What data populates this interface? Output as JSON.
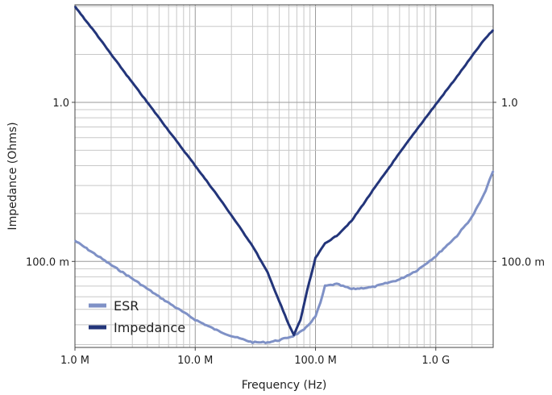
{
  "chart_data": {
    "type": "line",
    "title": "",
    "xlabel": "Frequency (Hz)",
    "ylabel": "Impedance (Ohms)",
    "x_scale": "log",
    "y_scale": "log",
    "xlim": [
      1000000,
      3000000000
    ],
    "ylim": [
      0.0288,
      4.1
    ],
    "grid": true,
    "legend_position": "bottom-left",
    "x_ticks": [
      {
        "value": 1000000,
        "label": "1.0 M"
      },
      {
        "value": 10000000,
        "label": "10.0 M"
      },
      {
        "value": 100000000,
        "label": "100.0 M"
      },
      {
        "value": 1000000000,
        "label": "1.0 G"
      }
    ],
    "y_ticks": [
      {
        "value": 0.1,
        "label": "100.0 m"
      },
      {
        "value": 1.0,
        "label": "1.0"
      }
    ],
    "series": [
      {
        "name": "ESR",
        "color": "#7f91c6",
        "x": [
          1000000,
          1500000,
          2000000,
          3000000,
          5000000,
          7000000,
          10000000,
          15000000,
          20000000,
          30000000,
          40000000,
          50000000,
          65000000,
          80000000,
          100000000,
          110000000,
          120000000,
          150000000,
          200000000,
          300000000,
          500000000,
          700000000,
          1000000000,
          1500000000,
          2000000000,
          2500000000,
          3000000000
        ],
        "y": [
          0.135,
          0.11,
          0.095,
          0.078,
          0.06,
          0.051,
          0.043,
          0.037,
          0.034,
          0.031,
          0.031,
          0.032,
          0.034,
          0.037,
          0.045,
          0.055,
          0.07,
          0.072,
          0.067,
          0.069,
          0.077,
          0.088,
          0.108,
          0.145,
          0.19,
          0.26,
          0.37
        ]
      },
      {
        "name": "Impedance",
        "color": "#23357a",
        "x": [
          1000000,
          1500000,
          2000000,
          3000000,
          5000000,
          7000000,
          10000000,
          15000000,
          20000000,
          30000000,
          40000000,
          50000000,
          60000000,
          66000000,
          75000000,
          85000000,
          100000000,
          120000000,
          150000000,
          200000000,
          300000000,
          500000000,
          700000000,
          1000000000,
          1500000000,
          2000000000,
          2500000000,
          3000000000
        ],
        "y": [
          4.0,
          2.7,
          2.0,
          1.33,
          0.8,
          0.57,
          0.4,
          0.265,
          0.195,
          0.125,
          0.085,
          0.056,
          0.04,
          0.0345,
          0.043,
          0.065,
          0.105,
          0.13,
          0.145,
          0.18,
          0.28,
          0.48,
          0.68,
          0.97,
          1.45,
          1.95,
          2.45,
          2.85
        ]
      }
    ]
  }
}
